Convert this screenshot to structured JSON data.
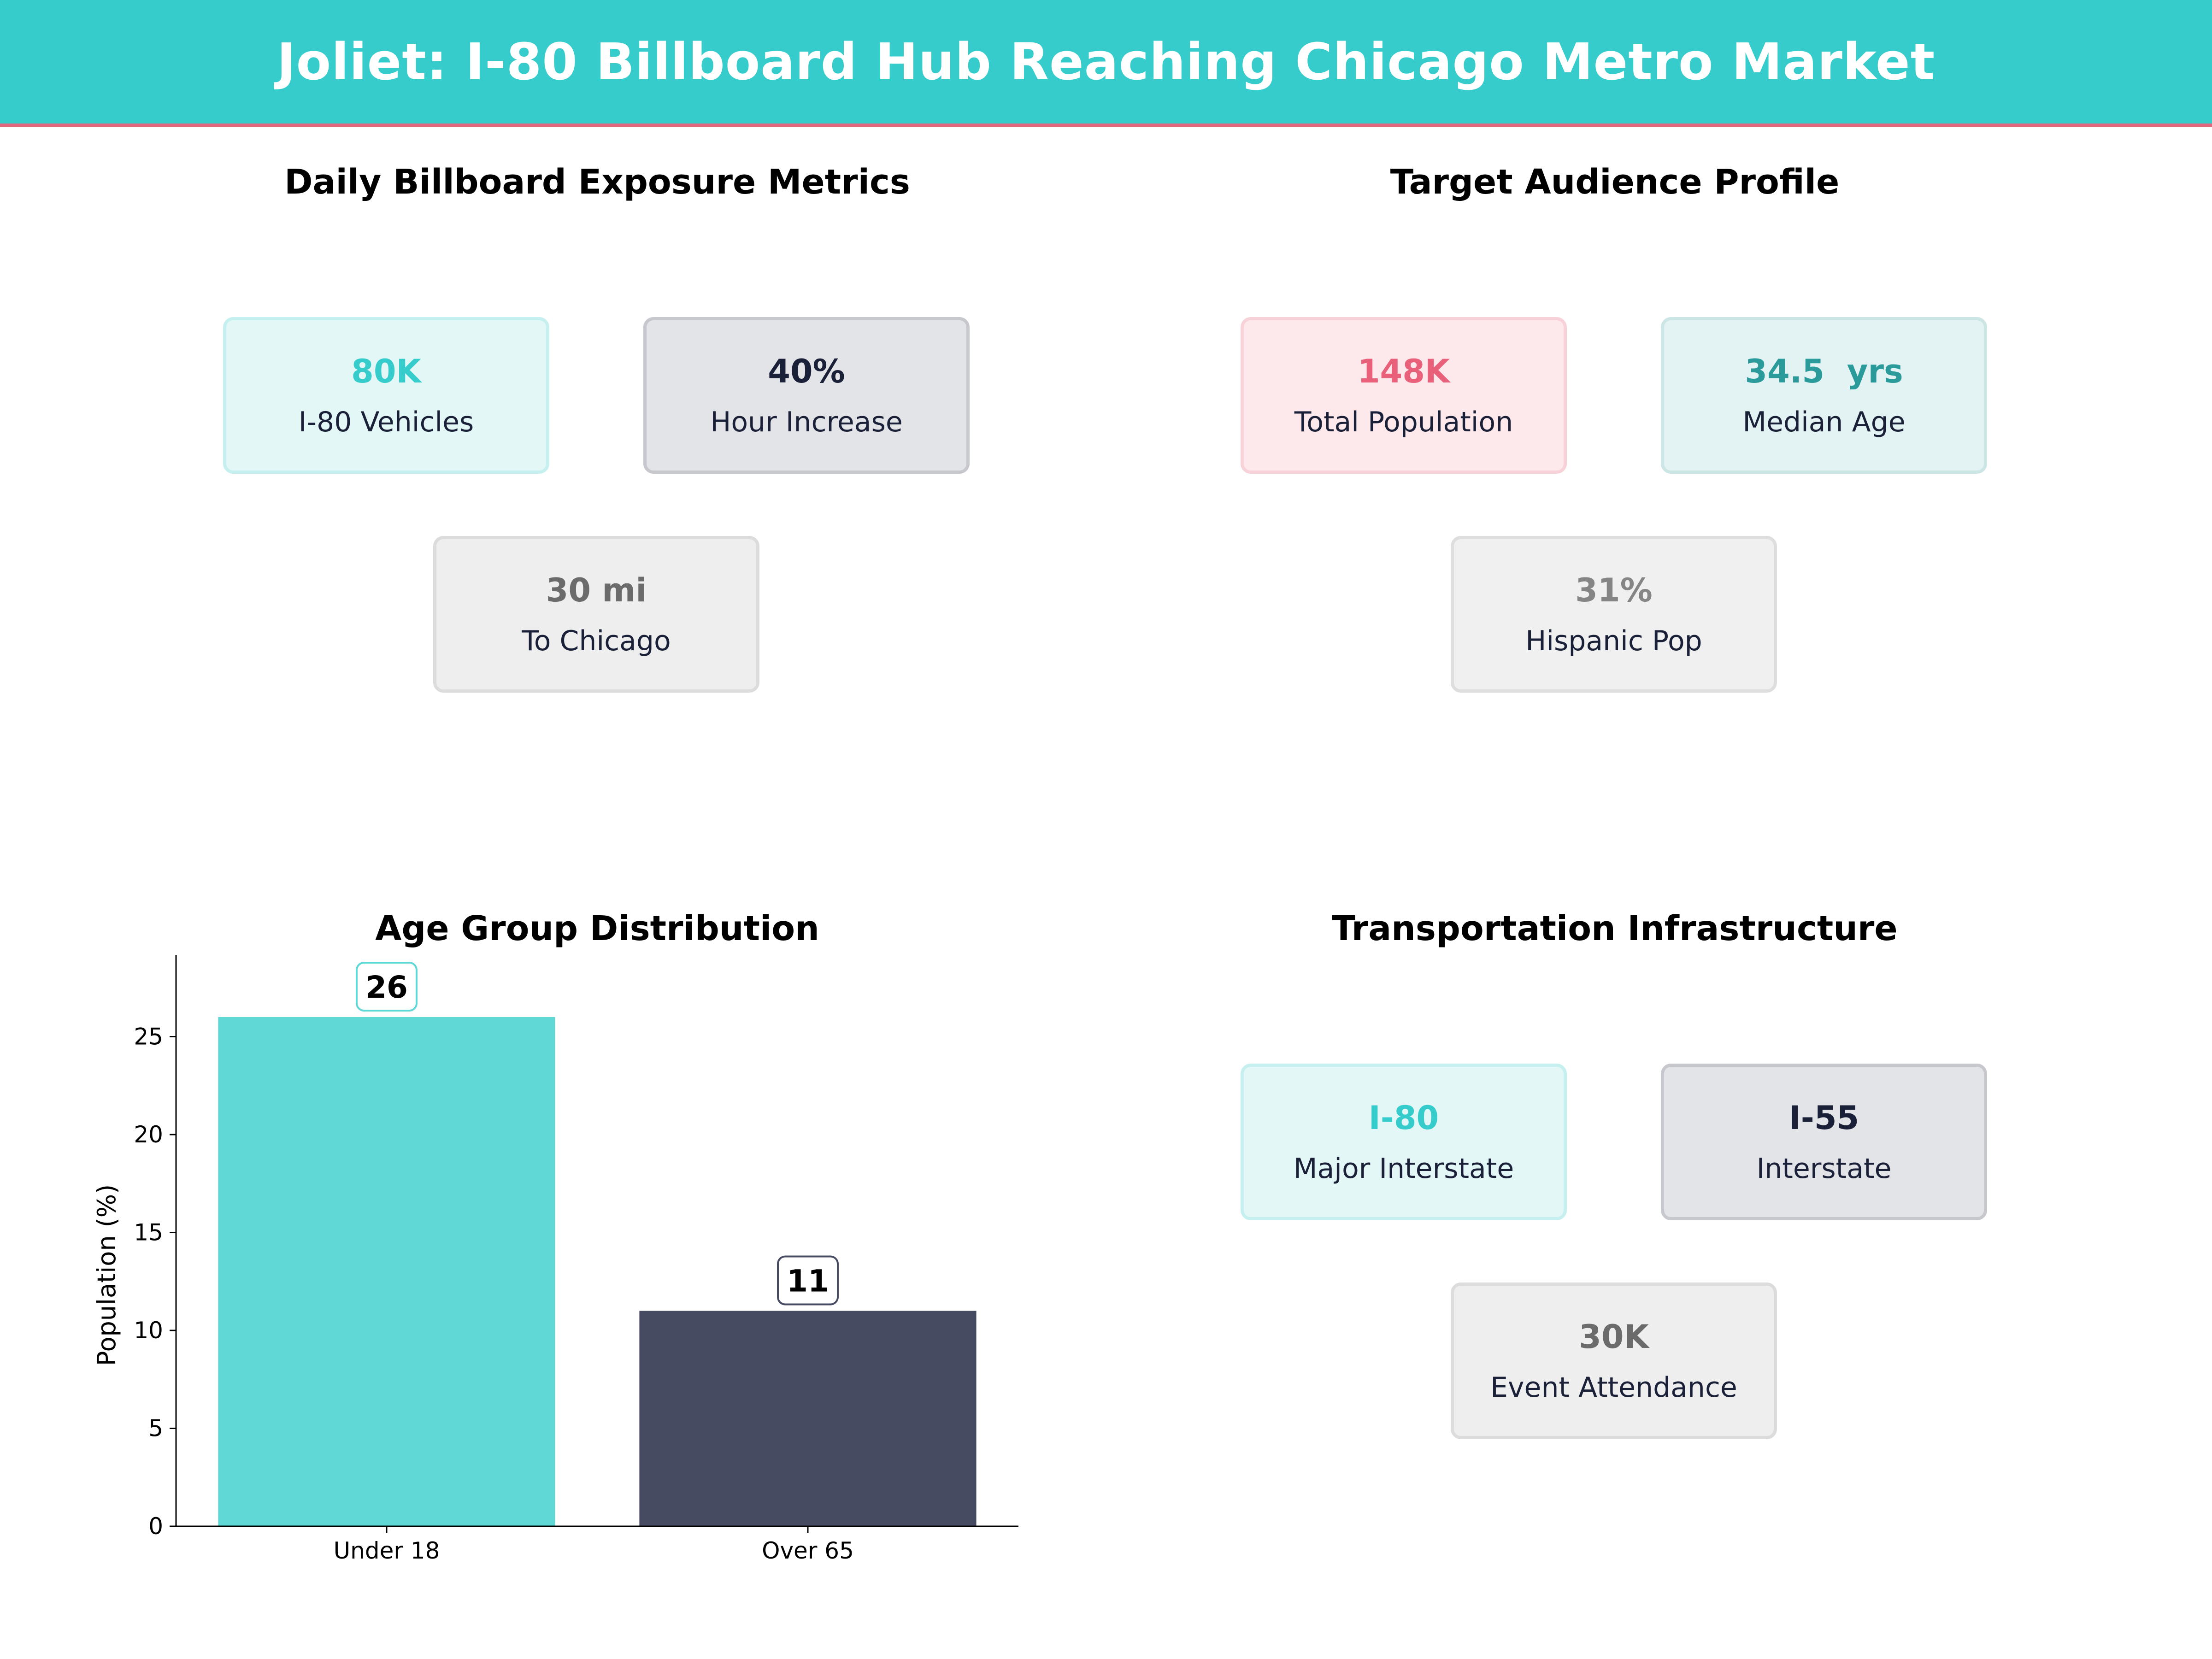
{
  "header": {
    "title": "Joliet: I-80 Billboard Hub Reaching Chicago Metro Market"
  },
  "exposure": {
    "title": "Daily Billboard Exposure Metrics",
    "cards": [
      {
        "value": "80K",
        "label": "I-80 Vehicles"
      },
      {
        "value": "40%",
        "label": "Hour Increase"
      },
      {
        "value": "30 mi",
        "label": "To Chicago"
      }
    ]
  },
  "audience": {
    "title": "Target Audience Profile",
    "cards": [
      {
        "value": "148K",
        "label": "Total Population"
      },
      {
        "value": "34.5  yrs",
        "label": "Median Age"
      },
      {
        "value": "31%",
        "label": "Hispanic Pop"
      }
    ]
  },
  "age": {
    "title": "Age Group Distribution"
  },
  "transport": {
    "title": "Transportation Infrastructure",
    "cards": [
      {
        "value": "I-80",
        "label": "Major Interstate"
      },
      {
        "value": "I-55",
        "label": "Interstate"
      },
      {
        "value": "30K",
        "label": "Event Attendance"
      }
    ]
  },
  "colors": {
    "teal": "#36cccc",
    "navy": "#1a2038",
    "pink": "#e8607a",
    "gray": "#6b6b6b",
    "dark_teal": "#2a9a9a"
  },
  "chart_data": {
    "type": "bar",
    "title": "Age Group Distribution",
    "categories": [
      "Under 18",
      "Over 65"
    ],
    "values": [
      26,
      11
    ],
    "value_labels": [
      "26",
      "11"
    ],
    "bar_colors": [
      "#5fd8d6",
      "#474b62"
    ],
    "ylabel": "Population (%)",
    "xlabel": "",
    "ylim": [
      0,
      28
    ],
    "yticks": [
      0,
      5,
      10,
      15,
      20,
      25
    ],
    "grid": false
  }
}
